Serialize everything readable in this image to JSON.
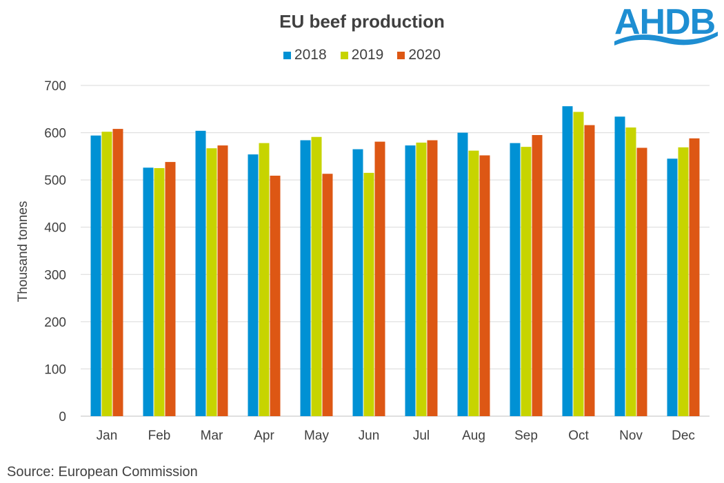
{
  "logo": {
    "text": "AHDB",
    "color": "#1e8ed2"
  },
  "source": "Source: European Commission",
  "chart_data": {
    "type": "bar",
    "title": "EU beef production",
    "xlabel": "",
    "ylabel": "Thousand tonnes",
    "ylim": [
      0,
      700
    ],
    "yticks": [
      0,
      100,
      200,
      300,
      400,
      500,
      600,
      700
    ],
    "grid": true,
    "legend_position": "top",
    "categories": [
      "Jan",
      "Feb",
      "Mar",
      "Apr",
      "May",
      "Jun",
      "Jul",
      "Aug",
      "Sep",
      "Oct",
      "Nov",
      "Dec"
    ],
    "series": [
      {
        "name": "2018",
        "color": "#0091d4",
        "values": [
          594,
          526,
          604,
          554,
          584,
          565,
          573,
          600,
          578,
          656,
          634,
          545
        ]
      },
      {
        "name": "2019",
        "color": "#c7d400",
        "values": [
          602,
          525,
          567,
          578,
          591,
          515,
          579,
          562,
          570,
          644,
          611,
          569
        ]
      },
      {
        "name": "2020",
        "color": "#dd5714",
        "values": [
          608,
          538,
          573,
          509,
          513,
          581,
          584,
          552,
          595,
          616,
          568,
          588
        ]
      }
    ]
  }
}
